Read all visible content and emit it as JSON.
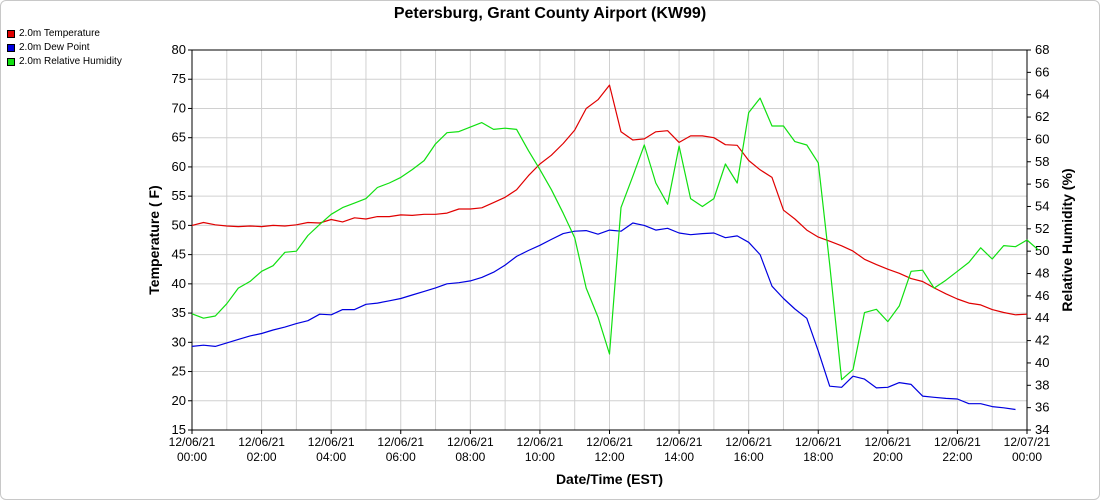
{
  "chart_data": {
    "type": "line",
    "title": "Petersburg, Grant County Airport (KW99)",
    "xlabel": "Date/Time (EST)",
    "ylabel_left": "Temperature ( F)",
    "ylabel_right": "Relative Humidity (%)",
    "ylim_left": [
      15,
      80
    ],
    "yticks_left": [
      15,
      20,
      25,
      30,
      35,
      40,
      45,
      50,
      55,
      60,
      65,
      70,
      75,
      80
    ],
    "ylim_right": [
      34,
      68
    ],
    "yticks_right": [
      34,
      36,
      38,
      40,
      42,
      44,
      46,
      48,
      50,
      52,
      54,
      56,
      58,
      60,
      62,
      64,
      66,
      68
    ],
    "xlim_hours": [
      0,
      24
    ],
    "x_tick_hours": [
      0,
      2,
      4,
      6,
      8,
      10,
      12,
      14,
      16,
      18,
      20,
      22,
      24
    ],
    "x_tick_labels": [
      [
        "12/06/21",
        "00:00"
      ],
      [
        "12/06/21",
        "02:00"
      ],
      [
        "12/06/21",
        "04:00"
      ],
      [
        "12/06/21",
        "06:00"
      ],
      [
        "12/06/21",
        "08:00"
      ],
      [
        "12/06/21",
        "10:00"
      ],
      [
        "12/06/21",
        "12:00"
      ],
      [
        "12/06/21",
        "14:00"
      ],
      [
        "12/06/21",
        "16:00"
      ],
      [
        "12/06/21",
        "18:00"
      ],
      [
        "12/06/21",
        "20:00"
      ],
      [
        "12/06/21",
        "22:00"
      ],
      [
        "12/07/21",
        "00:00"
      ]
    ],
    "grid": true,
    "legend_position": "top-left",
    "series": [
      {
        "name": "2.0m Temperature",
        "color": "#e00000",
        "axis": "left",
        "points": [
          [
            0.0,
            50.0
          ],
          [
            0.33,
            50.5
          ],
          [
            0.67,
            50.1
          ],
          [
            1.0,
            49.9
          ],
          [
            1.33,
            49.8
          ],
          [
            1.67,
            49.9
          ],
          [
            2.0,
            49.8
          ],
          [
            2.33,
            50.0
          ],
          [
            2.67,
            49.9
          ],
          [
            3.0,
            50.1
          ],
          [
            3.33,
            50.5
          ],
          [
            3.67,
            50.4
          ],
          [
            4.0,
            51.0
          ],
          [
            4.33,
            50.6
          ],
          [
            4.67,
            51.3
          ],
          [
            5.0,
            51.1
          ],
          [
            5.33,
            51.5
          ],
          [
            5.67,
            51.5
          ],
          [
            6.0,
            51.8
          ],
          [
            6.33,
            51.7
          ],
          [
            6.67,
            51.9
          ],
          [
            7.0,
            51.9
          ],
          [
            7.33,
            52.1
          ],
          [
            7.67,
            52.8
          ],
          [
            8.0,
            52.8
          ],
          [
            8.33,
            53.0
          ],
          [
            8.67,
            53.9
          ],
          [
            9.0,
            54.8
          ],
          [
            9.33,
            56.1
          ],
          [
            9.67,
            58.5
          ],
          [
            10.0,
            60.5
          ],
          [
            10.33,
            62.0
          ],
          [
            10.67,
            64.0
          ],
          [
            11.0,
            66.3
          ],
          [
            11.33,
            70.0
          ],
          [
            11.67,
            71.5
          ],
          [
            12.0,
            74.0
          ],
          [
            12.33,
            66.0
          ],
          [
            12.67,
            64.6
          ],
          [
            13.0,
            64.8
          ],
          [
            13.33,
            66.0
          ],
          [
            13.67,
            66.2
          ],
          [
            14.0,
            64.2
          ],
          [
            14.33,
            65.3
          ],
          [
            14.67,
            65.3
          ],
          [
            15.0,
            65.0
          ],
          [
            15.33,
            63.8
          ],
          [
            15.67,
            63.7
          ],
          [
            16.0,
            61.1
          ],
          [
            16.33,
            59.5
          ],
          [
            16.67,
            58.2
          ],
          [
            17.0,
            52.6
          ],
          [
            17.33,
            51.1
          ],
          [
            17.67,
            49.2
          ],
          [
            18.0,
            48.0
          ],
          [
            18.33,
            47.3
          ],
          [
            18.67,
            46.5
          ],
          [
            19.0,
            45.6
          ],
          [
            19.33,
            44.2
          ],
          [
            19.67,
            43.3
          ],
          [
            20.0,
            42.5
          ],
          [
            20.33,
            41.8
          ],
          [
            20.67,
            40.9
          ],
          [
            21.0,
            40.4
          ],
          [
            21.33,
            39.3
          ],
          [
            21.67,
            38.3
          ],
          [
            22.0,
            37.4
          ],
          [
            22.33,
            36.7
          ],
          [
            22.67,
            36.4
          ],
          [
            23.0,
            35.6
          ],
          [
            23.33,
            35.1
          ],
          [
            23.67,
            34.7
          ],
          [
            24.0,
            34.8
          ]
        ]
      },
      {
        "name": "2.0m Dew Point",
        "color": "#0000e0",
        "axis": "left",
        "points": [
          [
            0.0,
            29.3
          ],
          [
            0.33,
            29.5
          ],
          [
            0.67,
            29.3
          ],
          [
            1.0,
            29.9
          ],
          [
            1.33,
            30.5
          ],
          [
            1.67,
            31.1
          ],
          [
            2.0,
            31.5
          ],
          [
            2.33,
            32.1
          ],
          [
            2.67,
            32.6
          ],
          [
            3.0,
            33.2
          ],
          [
            3.33,
            33.7
          ],
          [
            3.67,
            34.8
          ],
          [
            4.0,
            34.7
          ],
          [
            4.33,
            35.6
          ],
          [
            4.67,
            35.6
          ],
          [
            5.0,
            36.5
          ],
          [
            5.33,
            36.7
          ],
          [
            5.67,
            37.1
          ],
          [
            6.0,
            37.5
          ],
          [
            6.33,
            38.1
          ],
          [
            6.67,
            38.7
          ],
          [
            7.0,
            39.3
          ],
          [
            7.33,
            40.0
          ],
          [
            7.67,
            40.2
          ],
          [
            8.0,
            40.5
          ],
          [
            8.33,
            41.1
          ],
          [
            8.67,
            42.0
          ],
          [
            9.0,
            43.2
          ],
          [
            9.33,
            44.7
          ],
          [
            9.67,
            45.7
          ],
          [
            10.0,
            46.6
          ],
          [
            10.33,
            47.6
          ],
          [
            10.67,
            48.6
          ],
          [
            11.0,
            49.0
          ],
          [
            11.33,
            49.1
          ],
          [
            11.67,
            48.5
          ],
          [
            12.0,
            49.2
          ],
          [
            12.33,
            49.0
          ],
          [
            12.67,
            50.4
          ],
          [
            13.0,
            50.0
          ],
          [
            13.33,
            49.2
          ],
          [
            13.67,
            49.5
          ],
          [
            14.0,
            48.7
          ],
          [
            14.33,
            48.4
          ],
          [
            14.67,
            48.6
          ],
          [
            15.0,
            48.7
          ],
          [
            15.33,
            47.9
          ],
          [
            15.67,
            48.2
          ],
          [
            16.0,
            47.1
          ],
          [
            16.33,
            45.0
          ],
          [
            16.67,
            39.6
          ],
          [
            17.0,
            37.5
          ],
          [
            17.33,
            35.7
          ],
          [
            17.67,
            34.1
          ],
          [
            18.0,
            28.5
          ],
          [
            18.33,
            22.5
          ],
          [
            18.67,
            22.3
          ],
          [
            19.0,
            24.2
          ],
          [
            19.33,
            23.7
          ],
          [
            19.67,
            22.2
          ],
          [
            20.0,
            22.3
          ],
          [
            20.33,
            23.1
          ],
          [
            20.67,
            22.8
          ],
          [
            21.0,
            20.8
          ],
          [
            21.33,
            20.6
          ],
          [
            21.67,
            20.4
          ],
          [
            22.0,
            20.3
          ],
          [
            22.33,
            19.5
          ],
          [
            22.67,
            19.5
          ],
          [
            23.0,
            19.0
          ],
          [
            23.33,
            18.8
          ],
          [
            23.67,
            18.5
          ]
        ]
      },
      {
        "name": "2.0m Relative Humidity",
        "color": "#10e010",
        "axis": "right",
        "points": [
          [
            0.0,
            44.4
          ],
          [
            0.33,
            44.0
          ],
          [
            0.67,
            44.2
          ],
          [
            1.0,
            45.3
          ],
          [
            1.33,
            46.7
          ],
          [
            1.67,
            47.3
          ],
          [
            2.0,
            48.2
          ],
          [
            2.33,
            48.7
          ],
          [
            2.67,
            49.9
          ],
          [
            3.0,
            50.0
          ],
          [
            3.33,
            51.4
          ],
          [
            3.67,
            52.4
          ],
          [
            4.0,
            53.3
          ],
          [
            4.33,
            53.9
          ],
          [
            4.67,
            54.3
          ],
          [
            5.0,
            54.7
          ],
          [
            5.33,
            55.7
          ],
          [
            5.67,
            56.1
          ],
          [
            6.0,
            56.6
          ],
          [
            6.33,
            57.3
          ],
          [
            6.67,
            58.1
          ],
          [
            7.0,
            59.6
          ],
          [
            7.33,
            60.6
          ],
          [
            7.67,
            60.7
          ],
          [
            8.0,
            61.1
          ],
          [
            8.33,
            61.5
          ],
          [
            8.67,
            60.9
          ],
          [
            9.0,
            61.0
          ],
          [
            9.33,
            60.9
          ],
          [
            9.67,
            59.0
          ],
          [
            10.0,
            57.3
          ],
          [
            10.33,
            55.5
          ],
          [
            10.67,
            53.4
          ],
          [
            11.0,
            51.2
          ],
          [
            11.33,
            46.7
          ],
          [
            11.67,
            44.1
          ],
          [
            12.0,
            40.8
          ],
          [
            12.33,
            53.9
          ],
          [
            12.67,
            56.7
          ],
          [
            13.0,
            59.5
          ],
          [
            13.33,
            56.1
          ],
          [
            13.67,
            54.2
          ],
          [
            14.0,
            59.4
          ],
          [
            14.33,
            54.7
          ],
          [
            14.67,
            54.0
          ],
          [
            15.0,
            54.7
          ],
          [
            15.33,
            57.8
          ],
          [
            15.67,
            56.1
          ],
          [
            16.0,
            62.4
          ],
          [
            16.33,
            63.7
          ],
          [
            16.67,
            61.2
          ],
          [
            17.0,
            61.2
          ],
          [
            17.33,
            59.8
          ],
          [
            17.67,
            59.5
          ],
          [
            18.0,
            57.9
          ],
          [
            18.33,
            48.8
          ],
          [
            18.67,
            38.5
          ],
          [
            19.0,
            39.4
          ],
          [
            19.33,
            44.5
          ],
          [
            19.67,
            44.8
          ],
          [
            20.0,
            43.7
          ],
          [
            20.33,
            45.1
          ],
          [
            20.67,
            48.2
          ],
          [
            21.0,
            48.3
          ],
          [
            21.33,
            46.7
          ],
          [
            21.67,
            47.4
          ],
          [
            22.0,
            48.2
          ],
          [
            22.33,
            49.0
          ],
          [
            22.67,
            50.3
          ],
          [
            23.0,
            49.3
          ],
          [
            23.33,
            50.5
          ],
          [
            23.67,
            50.4
          ],
          [
            24.0,
            51.0
          ],
          [
            24.33,
            50.1
          ]
        ]
      }
    ]
  }
}
